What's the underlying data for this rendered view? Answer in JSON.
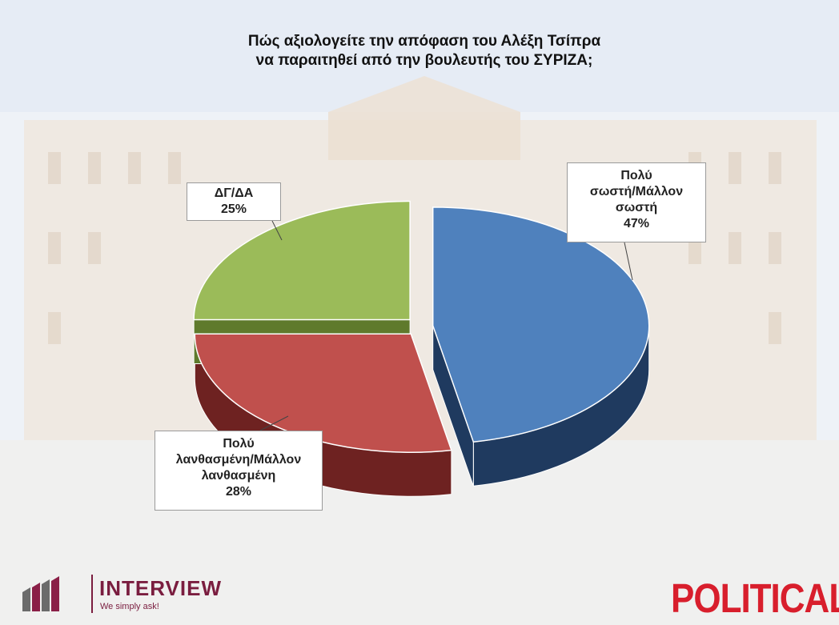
{
  "chart_data": {
    "type": "pie",
    "title_lines": [
      "Πώς αξιολογείτε την απόφαση του Αλέξη Τσίπρα",
      "να παραιτηθεί από την βουλευτής του ΣΥΡΙΖΑ;"
    ],
    "slices": [
      {
        "label_lines": [
          "Πολύ",
          "σωστή/Μάλλον",
          "σωστή"
        ],
        "value": 47,
        "value_label": "47%",
        "color": "#4f81bd",
        "side_color": "#1f3a5f"
      },
      {
        "label_lines": [
          "Πολύ",
          "λανθασμένη/Μάλλον",
          "λανθασμένη"
        ],
        "value": 28,
        "value_label": "28%",
        "color": "#c0504d",
        "side_color": "#6e2221"
      },
      {
        "label_lines": [
          "ΔΓ/ΔΑ"
        ],
        "value": 25,
        "value_label": "25%",
        "color": "#9bbb59",
        "side_color": "#5f7a2c"
      }
    ],
    "legend": "none",
    "style": "3d-exploded"
  },
  "branding": {
    "left_name": "INTERVIEW",
    "left_tagline": "We simply ask!",
    "left_color": "#7a1d3f",
    "right_name": "POLITICAL",
    "right_color": "#d81e2c"
  }
}
